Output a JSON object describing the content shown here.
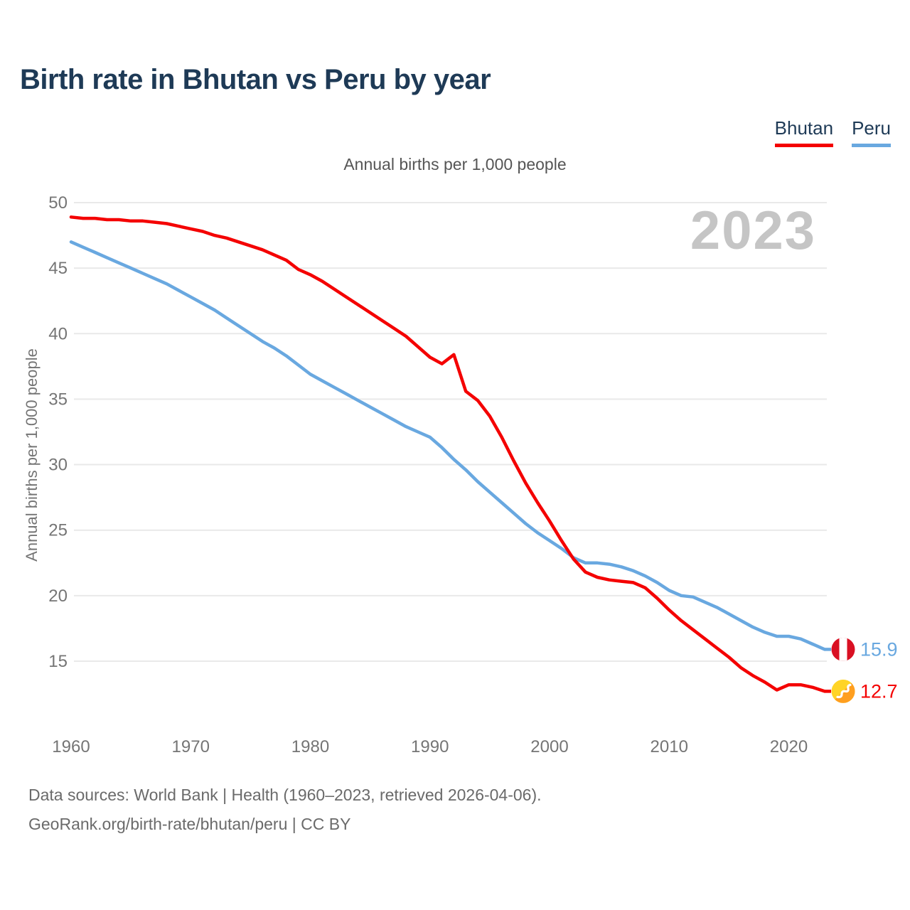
{
  "title": "Birth rate in Bhutan vs Peru by year",
  "watermark": "2023",
  "legend": {
    "items": [
      {
        "label": "Bhutan",
        "color": "#f40000"
      },
      {
        "label": "Peru",
        "color": "#69a8e0"
      }
    ]
  },
  "footer": {
    "line1": "Data sources: World Bank | Health (1960–2023, retrieved 2026-04-06).",
    "line2": "GeoRank.org/birth-rate/bhutan/peru | CC BY"
  },
  "chart_data": {
    "type": "line",
    "title": "Annual births per 1,000 people",
    "ylabel": "Annual births per 1,000 people",
    "x_start": 1960,
    "x_end": 2023,
    "x_ticks": [
      1960,
      1970,
      1980,
      1990,
      2000,
      2010,
      2020
    ],
    "y_ticks": [
      50,
      45,
      40,
      35,
      30,
      25,
      20,
      15
    ],
    "ylim": [
      12,
      50
    ],
    "grid": "horizontal",
    "legend_position": "top-right",
    "series": [
      {
        "name": "Bhutan",
        "color": "#f40000",
        "end_label": "12.7",
        "flag": "bhutan",
        "values": [
          48.9,
          48.8,
          48.8,
          48.7,
          48.7,
          48.6,
          48.6,
          48.5,
          48.4,
          48.2,
          48.0,
          47.8,
          47.5,
          47.3,
          47.0,
          46.7,
          46.4,
          46.0,
          45.6,
          44.9,
          44.5,
          44.0,
          43.4,
          42.8,
          42.2,
          41.6,
          41.0,
          40.4,
          39.8,
          39.0,
          38.2,
          37.7,
          38.4,
          35.6,
          34.9,
          33.7,
          32.1,
          30.3,
          28.6,
          27.1,
          25.7,
          24.2,
          22.8,
          21.8,
          21.4,
          21.2,
          21.1,
          21.0,
          20.6,
          19.8,
          18.9,
          18.1,
          17.4,
          16.7,
          16.0,
          15.3,
          14.5,
          13.9,
          13.4,
          12.8,
          13.2,
          13.2,
          13.0,
          12.7
        ]
      },
      {
        "name": "Peru",
        "color": "#69a8e0",
        "end_label": "15.9",
        "flag": "peru",
        "values": [
          47.0,
          46.6,
          46.2,
          45.8,
          45.4,
          45.0,
          44.6,
          44.2,
          43.8,
          43.3,
          42.8,
          42.3,
          41.8,
          41.2,
          40.6,
          40.0,
          39.4,
          38.9,
          38.3,
          37.6,
          36.9,
          36.4,
          35.9,
          35.4,
          34.9,
          34.4,
          33.9,
          33.4,
          32.9,
          32.5,
          32.1,
          31.3,
          30.4,
          29.6,
          28.7,
          27.9,
          27.1,
          26.3,
          25.5,
          24.8,
          24.2,
          23.6,
          22.9,
          22.5,
          22.5,
          22.4,
          22.2,
          21.9,
          21.5,
          21.0,
          20.4,
          20.0,
          19.9,
          19.5,
          19.1,
          18.6,
          18.1,
          17.6,
          17.2,
          16.9,
          16.9,
          16.7,
          16.3,
          15.9
        ]
      }
    ]
  }
}
